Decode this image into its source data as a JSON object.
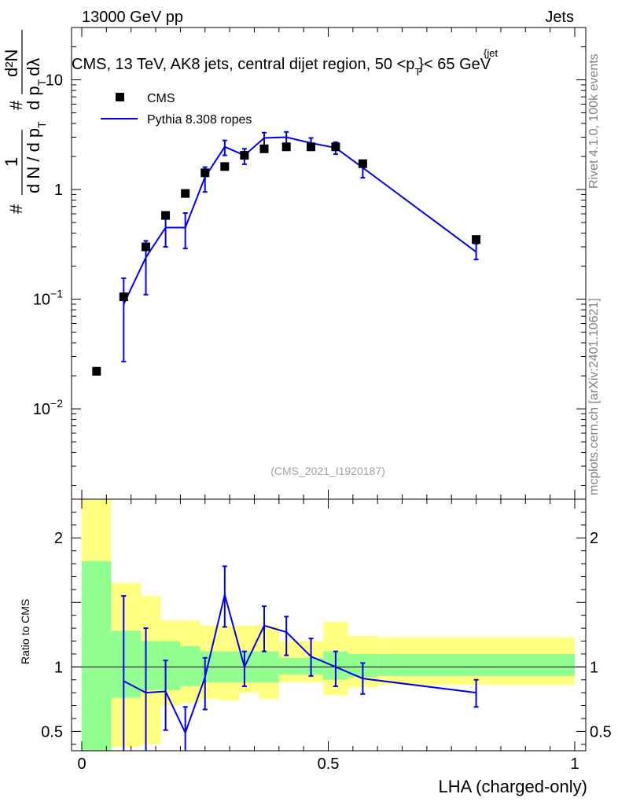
{
  "header": {
    "left": "13000 GeV pp",
    "right": "Jets"
  },
  "side": {
    "rivet": "Rivet 4.1.0,  100k events",
    "mcplots": "mcplots.cern.ch [arXiv:2401.10621]"
  },
  "chart_data": {
    "type": "scatter",
    "title": "CMS, 13 TeV, AK8 jets, central dijet region, 50 <p_T^{jet}< 65 GeV",
    "title_parts": {
      "pre": "CMS, 13 TeV, AK8 jets, central dijet region, 50 <p",
      "sub": "T",
      "sup": "{jet",
      "close": "}",
      "post": "< 65 GeV"
    },
    "watermark": "(CMS_2021_I1920187)",
    "xlabel": "LHA (charged-only)",
    "ylabel_parts": {
      "num1": "#",
      "frac1_num": "1",
      "frac1_den": "d N / d p",
      "frac1_den_sub": "T",
      "num2": "#",
      "frac2_num": "d²N",
      "frac2_den": "d p",
      "frac2_den_sub": "T",
      "frac2_den_tail": "dλ"
    },
    "ratio_ylabel": "Ratio to CMS",
    "xlim": [
      0,
      1
    ],
    "ylim_main": [
      0.0015,
      30
    ],
    "ylim_ratio": [
      0.35,
      2.3
    ],
    "yscale_main": "log",
    "x_ticks": [
      0,
      0.5,
      1
    ],
    "x_tick_labels": [
      "0",
      "0.5",
      "1"
    ],
    "y_ticks_main": [
      {
        "value": 10,
        "base": "10",
        "exp": ""
      },
      {
        "value": 1,
        "base": "1",
        "exp": ""
      },
      {
        "value": 0.1,
        "base": "10",
        "exp": "−1"
      },
      {
        "value": 0.01,
        "base": "10",
        "exp": "−2"
      }
    ],
    "y_ticks_ratio": [
      {
        "value": 2,
        "label": "2"
      },
      {
        "value": 1,
        "label": "1"
      },
      {
        "value": 0.5,
        "label": "0.5"
      }
    ],
    "legend_position": "top-left",
    "bin_edges": [
      0,
      0.06,
      0.12,
      0.16,
      0.2,
      0.24,
      0.28,
      0.32,
      0.36,
      0.4,
      0.44,
      0.49,
      0.54,
      0.6,
      1.0
    ],
    "series": [
      {
        "name": "CMS",
        "kind": "data",
        "color": "#000000",
        "x": [
          0.03,
          0.085,
          0.13,
          0.17,
          0.21,
          0.25,
          0.29,
          0.33,
          0.37,
          0.415,
          0.465,
          0.515,
          0.57,
          0.8
        ],
        "y": [
          0.022,
          0.105,
          0.3,
          0.58,
          0.92,
          1.42,
          1.62,
          2.05,
          2.35,
          2.45,
          2.45,
          2.45,
          1.72,
          0.35
        ]
      },
      {
        "name": "Pythia 8.308 ropes",
        "kind": "mc",
        "color": "#0000ee",
        "x": [
          0.085,
          0.13,
          0.17,
          0.21,
          0.25,
          0.29,
          0.33,
          0.37,
          0.415,
          0.465,
          0.515,
          0.57,
          0.8
        ],
        "y": [
          0.09,
          0.24,
          0.45,
          0.45,
          1.3,
          2.45,
          2.05,
          2.95,
          3.0,
          2.65,
          2.4,
          1.58,
          0.27
        ],
        "yerr_low": [
          0.063,
          0.13,
          0.15,
          0.16,
          0.35,
          0.4,
          0.35,
          0.45,
          0.4,
          0.35,
          0.3,
          0.3,
          0.04
        ],
        "yerr_high": [
          0.065,
          0.1,
          0.15,
          0.16,
          0.3,
          0.35,
          0.3,
          0.35,
          0.35,
          0.3,
          0.3,
          0.25,
          0.05
        ]
      }
    ],
    "ratio": {
      "reference_line": 1,
      "band_outer": {
        "color": "#ffff80",
        "lo": [
          0.35,
          0.38,
          0.4,
          0.7,
          0.72,
          0.75,
          0.74,
          0.8,
          0.75,
          0.88,
          0.88,
          0.78,
          0.84,
          0.86
        ],
        "hi": [
          2.3,
          1.65,
          1.55,
          1.36,
          1.36,
          1.32,
          1.32,
          1.32,
          1.32,
          1.2,
          1.2,
          1.35,
          1.24,
          1.23
        ]
      },
      "band_inner": {
        "color": "#90ff90",
        "lo": [
          0.35,
          0.76,
          0.82,
          0.82,
          0.85,
          0.88,
          0.88,
          0.88,
          0.88,
          0.94,
          0.94,
          0.9,
          0.92,
          0.93
        ],
        "hi": [
          1.82,
          1.28,
          1.2,
          1.2,
          1.16,
          1.12,
          1.12,
          1.12,
          1.12,
          1.07,
          1.07,
          1.12,
          1.1,
          1.1
        ]
      },
      "x": [
        0.085,
        0.13,
        0.17,
        0.21,
        0.25,
        0.29,
        0.33,
        0.37,
        0.415,
        0.465,
        0.515,
        0.57,
        0.8
      ],
      "y": [
        0.89,
        0.8,
        0.81,
        0.49,
        0.92,
        1.56,
        1.0,
        1.32,
        1.27,
        1.08,
        1.0,
        0.91,
        0.8
      ],
      "yerr_low": [
        0.6,
        0.5,
        0.3,
        0.2,
        0.25,
        0.25,
        0.15,
        0.2,
        0.18,
        0.15,
        0.15,
        0.12,
        0.11
      ],
      "yerr_high": [
        0.66,
        0.5,
        0.24,
        0.2,
        0.15,
        0.22,
        0.12,
        0.15,
        0.12,
        0.14,
        0.12,
        0.12,
        0.1
      ]
    }
  }
}
